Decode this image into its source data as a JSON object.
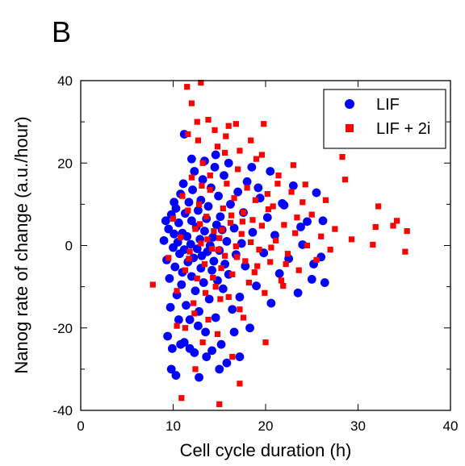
{
  "panel_label": "B",
  "colors": {
    "lif": "#0000ff",
    "lif_2i": "#ff0000",
    "axis": "#000000",
    "background": "#ffffff"
  },
  "chart_data": {
    "type": "scatter",
    "title": "",
    "xlabel": "Cell cycle duration (h)",
    "ylabel": "Nanog rate of change (a.u./hour)",
    "xlim": [
      0,
      40
    ],
    "ylim": [
      -40,
      40
    ],
    "xticks": [
      0,
      10,
      20,
      30,
      40
    ],
    "yticks": [
      -40,
      -20,
      0,
      20,
      40
    ],
    "xtick_labels": [
      "0",
      "10",
      "20",
      "30",
      "40"
    ],
    "ytick_labels": [
      "-40",
      "-20",
      "0",
      "20",
      "40"
    ],
    "grid": false,
    "legend_position": "top-right",
    "series": [
      {
        "name": "LIF",
        "marker": "circle",
        "color": "#0000ff",
        "points": [
          [
            9.0,
            1.2
          ],
          [
            9.3,
            -3.5
          ],
          [
            9.5,
            4.0
          ],
          [
            9.6,
            -8.0
          ],
          [
            9.8,
            7.5
          ],
          [
            10.0,
            -0.5
          ],
          [
            10.1,
            2.8
          ],
          [
            10.2,
            -5.2
          ],
          [
            10.3,
            9.0
          ],
          [
            10.4,
            -12.0
          ],
          [
            10.5,
            0.8
          ],
          [
            10.6,
            5.5
          ],
          [
            10.7,
            -2.0
          ],
          [
            10.8,
            12.5
          ],
          [
            10.9,
            -9.5
          ],
          [
            11.0,
            3.0
          ],
          [
            11.0,
            -6.5
          ],
          [
            11.1,
            15.0
          ],
          [
            11.2,
            -1.0
          ],
          [
            11.3,
            7.8
          ],
          [
            11.4,
            -14.5
          ],
          [
            11.5,
            2.2
          ],
          [
            11.6,
            -4.0
          ],
          [
            11.7,
            10.5
          ],
          [
            11.8,
            -18.0
          ],
          [
            11.9,
            0.3
          ],
          [
            12.0,
            6.0
          ],
          [
            12.0,
            -7.5
          ],
          [
            12.1,
            13.5
          ],
          [
            12.2,
            -3.0
          ],
          [
            12.3,
            18.0
          ],
          [
            12.4,
            -11.0
          ],
          [
            12.5,
            4.5
          ],
          [
            12.6,
            -0.8
          ],
          [
            12.7,
            8.5
          ],
          [
            12.8,
            -16.0
          ],
          [
            12.9,
            1.5
          ],
          [
            13.0,
            -5.5
          ],
          [
            13.0,
            11.0
          ],
          [
            13.1,
            -2.5
          ],
          [
            13.2,
            16.0
          ],
          [
            13.3,
            -9.0
          ],
          [
            13.4,
            3.5
          ],
          [
            13.5,
            -21.0
          ],
          [
            13.6,
            6.5
          ],
          [
            13.7,
            -1.5
          ],
          [
            13.8,
            9.5
          ],
          [
            13.9,
            -13.0
          ],
          [
            14.0,
            0.0
          ],
          [
            14.1,
            14.0
          ],
          [
            14.2,
            -6.0
          ],
          [
            14.3,
            2.0
          ],
          [
            14.4,
            -3.8
          ],
          [
            14.5,
            19.0
          ],
          [
            14.6,
            -17.5
          ],
          [
            14.7,
            5.0
          ],
          [
            14.8,
            -8.5
          ],
          [
            14.9,
            12.0
          ],
          [
            15.0,
            -1.2
          ],
          [
            15.1,
            7.0
          ],
          [
            15.2,
            -24.0
          ],
          [
            15.3,
            3.8
          ],
          [
            15.4,
            -10.5
          ],
          [
            15.5,
            17.0
          ],
          [
            15.6,
            -4.5
          ],
          [
            15.8,
            1.0
          ],
          [
            16.0,
            -7.0
          ],
          [
            16.2,
            10.0
          ],
          [
            16.4,
            -15.5
          ],
          [
            16.6,
            4.2
          ],
          [
            16.8,
            -2.2
          ],
          [
            17.0,
            13.0
          ],
          [
            17.2,
            -12.5
          ],
          [
            17.4,
            0.5
          ],
          [
            17.6,
            8.0
          ],
          [
            17.8,
            -5.0
          ],
          [
            18.0,
            15.5
          ],
          [
            18.3,
            -20.0
          ],
          [
            18.6,
            3.2
          ],
          [
            19.0,
            -9.8
          ],
          [
            19.4,
            11.5
          ],
          [
            19.8,
            -1.8
          ],
          [
            20.2,
            6.8
          ],
          [
            20.6,
            -14.0
          ],
          [
            21.0,
            2.5
          ],
          [
            21.5,
            -6.8
          ],
          [
            22.0,
            9.8
          ],
          [
            22.5,
            -3.2
          ],
          [
            23.0,
            14.5
          ],
          [
            23.5,
            -11.5
          ],
          [
            24.0,
            0.2
          ],
          [
            24.5,
            5.8
          ],
          [
            25.0,
            -8.2
          ],
          [
            25.5,
            12.8
          ],
          [
            26.0,
            -2.8
          ],
          [
            26.4,
            -9.0
          ],
          [
            9.4,
            -22.0
          ],
          [
            9.9,
            -25.0
          ],
          [
            10.3,
            -31.5
          ],
          [
            10.8,
            -24.0
          ],
          [
            11.2,
            -23.5
          ],
          [
            11.8,
            -25.0
          ],
          [
            12.3,
            -26.0
          ],
          [
            12.8,
            -32.0
          ],
          [
            13.6,
            -27.0
          ],
          [
            14.2,
            -25.5
          ],
          [
            15.0,
            -30.0
          ],
          [
            15.8,
            -28.5
          ],
          [
            17.2,
            -27.0
          ],
          [
            11.2,
            27.0
          ],
          [
            9.8,
            -30.0
          ],
          [
            10.6,
            -18.0
          ],
          [
            12.0,
            21.0
          ],
          [
            16.0,
            20.0
          ],
          [
            18.5,
            19.0
          ],
          [
            20.5,
            18.0
          ],
          [
            9.2,
            6.0
          ],
          [
            9.7,
            -15.0
          ],
          [
            10.1,
            10.5
          ],
          [
            12.7,
            -19.5
          ],
          [
            14.6,
            22.0
          ],
          [
            16.6,
            -21.0
          ],
          [
            19.2,
            14.0
          ],
          [
            21.8,
            10.2
          ],
          [
            23.8,
            4.5
          ],
          [
            25.2,
            -4.5
          ],
          [
            26.2,
            6.0
          ],
          [
            13.4,
            20.5
          ]
        ]
      },
      {
        "name": "LIF + 2i",
        "marker": "square",
        "color": "#ff0000",
        "points": [
          [
            7.8,
            -9.5
          ],
          [
            9.5,
            -3.0
          ],
          [
            10.0,
            6.5
          ],
          [
            10.4,
            -11.0
          ],
          [
            10.8,
            2.0
          ],
          [
            11.0,
            12.0
          ],
          [
            11.3,
            -6.0
          ],
          [
            11.6,
            8.5
          ],
          [
            11.8,
            -1.5
          ],
          [
            12.0,
            16.5
          ],
          [
            12.2,
            -14.0
          ],
          [
            12.4,
            4.0
          ],
          [
            12.6,
            -8.0
          ],
          [
            12.8,
            10.0
          ],
          [
            13.0,
            0.5
          ],
          [
            13.2,
            20.0
          ],
          [
            13.4,
            -4.5
          ],
          [
            13.6,
            7.0
          ],
          [
            13.8,
            -18.0
          ],
          [
            14.0,
            13.5
          ],
          [
            14.2,
            -0.8
          ],
          [
            14.4,
            3.5
          ],
          [
            14.6,
            -10.0
          ],
          [
            14.8,
            24.0
          ],
          [
            15.0,
            1.8
          ],
          [
            15.2,
            -5.5
          ],
          [
            15.4,
            9.0
          ],
          [
            15.6,
            -2.5
          ],
          [
            15.8,
            15.0
          ],
          [
            16.0,
            -12.5
          ],
          [
            16.2,
            5.5
          ],
          [
            16.4,
            -7.0
          ],
          [
            16.6,
            11.5
          ],
          [
            16.8,
            -0.2
          ],
          [
            17.0,
            18.5
          ],
          [
            17.2,
            -15.5
          ],
          [
            17.4,
            2.8
          ],
          [
            17.6,
            8.0
          ],
          [
            17.8,
            -3.8
          ],
          [
            18.0,
            14.0
          ],
          [
            18.2,
            -9.0
          ],
          [
            18.4,
            0.8
          ],
          [
            18.6,
            6.2
          ],
          [
            18.8,
            -6.5
          ],
          [
            19.0,
            21.0
          ],
          [
            19.3,
            -1.0
          ],
          [
            19.6,
            4.8
          ],
          [
            19.9,
            -11.5
          ],
          [
            20.2,
            12.5
          ],
          [
            20.5,
            -4.0
          ],
          [
            20.8,
            9.5
          ],
          [
            21.1,
            1.2
          ],
          [
            21.4,
            17.0
          ],
          [
            21.7,
            -8.5
          ],
          [
            22.0,
            5.0
          ],
          [
            22.4,
            -2.0
          ],
          [
            22.8,
            13.0
          ],
          [
            23.2,
            3.0
          ],
          [
            23.6,
            -6.0
          ],
          [
            24.0,
            10.5
          ],
          [
            24.5,
            0.0
          ],
          [
            25.0,
            7.5
          ],
          [
            25.5,
            -3.5
          ],
          [
            26.0,
            2.2
          ],
          [
            26.5,
            11.0
          ],
          [
            27.0,
            -1.0
          ],
          [
            27.5,
            4.0
          ],
          [
            28.3,
            21.5
          ],
          [
            28.6,
            16.0
          ],
          [
            29.3,
            1.5
          ],
          [
            31.6,
            0.2
          ],
          [
            31.9,
            4.5
          ],
          [
            32.2,
            9.5
          ],
          [
            33.8,
            4.8
          ],
          [
            34.2,
            6.0
          ],
          [
            35.3,
            3.5
          ],
          [
            35.1,
            -1.5
          ],
          [
            11.5,
            38.5
          ],
          [
            13.0,
            39.5
          ],
          [
            12.0,
            34.5
          ],
          [
            13.8,
            30.5
          ],
          [
            12.6,
            30.0
          ],
          [
            16.0,
            29.0
          ],
          [
            16.8,
            29.5
          ],
          [
            19.8,
            29.5
          ],
          [
            14.5,
            28.0
          ],
          [
            15.7,
            26.5
          ],
          [
            11.6,
            27.0
          ],
          [
            12.7,
            25.5
          ],
          [
            18.4,
            25.5
          ],
          [
            17.2,
            23.0
          ],
          [
            19.6,
            22.0
          ],
          [
            10.9,
            -37.0
          ],
          [
            15.0,
            -38.5
          ],
          [
            17.2,
            -33.5
          ],
          [
            12.4,
            -30.0
          ],
          [
            13.2,
            -23.5
          ],
          [
            16.4,
            -27.0
          ],
          [
            14.8,
            -21.5
          ],
          [
            20.0,
            -23.5
          ],
          [
            10.4,
            -19.5
          ],
          [
            11.3,
            -20.0
          ],
          [
            15.6,
            22.5
          ],
          [
            14.0,
            17.0
          ],
          [
            13.1,
            14.5
          ],
          [
            15.1,
            -13.0
          ],
          [
            12.3,
            -16.5
          ],
          [
            17.6,
            -17.5
          ],
          [
            21.3,
            15.0
          ],
          [
            23.0,
            19.5
          ],
          [
            24.3,
            14.8
          ],
          [
            22.2,
            -4.5
          ],
          [
            20.6,
            -0.5
          ],
          [
            18.9,
            11.0
          ],
          [
            16.3,
            7.3
          ],
          [
            14.3,
            -7.8
          ],
          [
            12.9,
            5.2
          ],
          [
            11.7,
            -3.2
          ],
          [
            13.7,
            1.5
          ],
          [
            15.3,
            3.8
          ],
          [
            16.9,
            -2.8
          ],
          [
            14.9,
            -1.0
          ],
          [
            13.5,
            -11.5
          ],
          [
            17.5,
            5.8
          ],
          [
            19.1,
            -5.0
          ],
          [
            20.3,
            8.8
          ],
          [
            21.9,
            -9.8
          ],
          [
            23.4,
            6.8
          ]
        ]
      }
    ]
  }
}
